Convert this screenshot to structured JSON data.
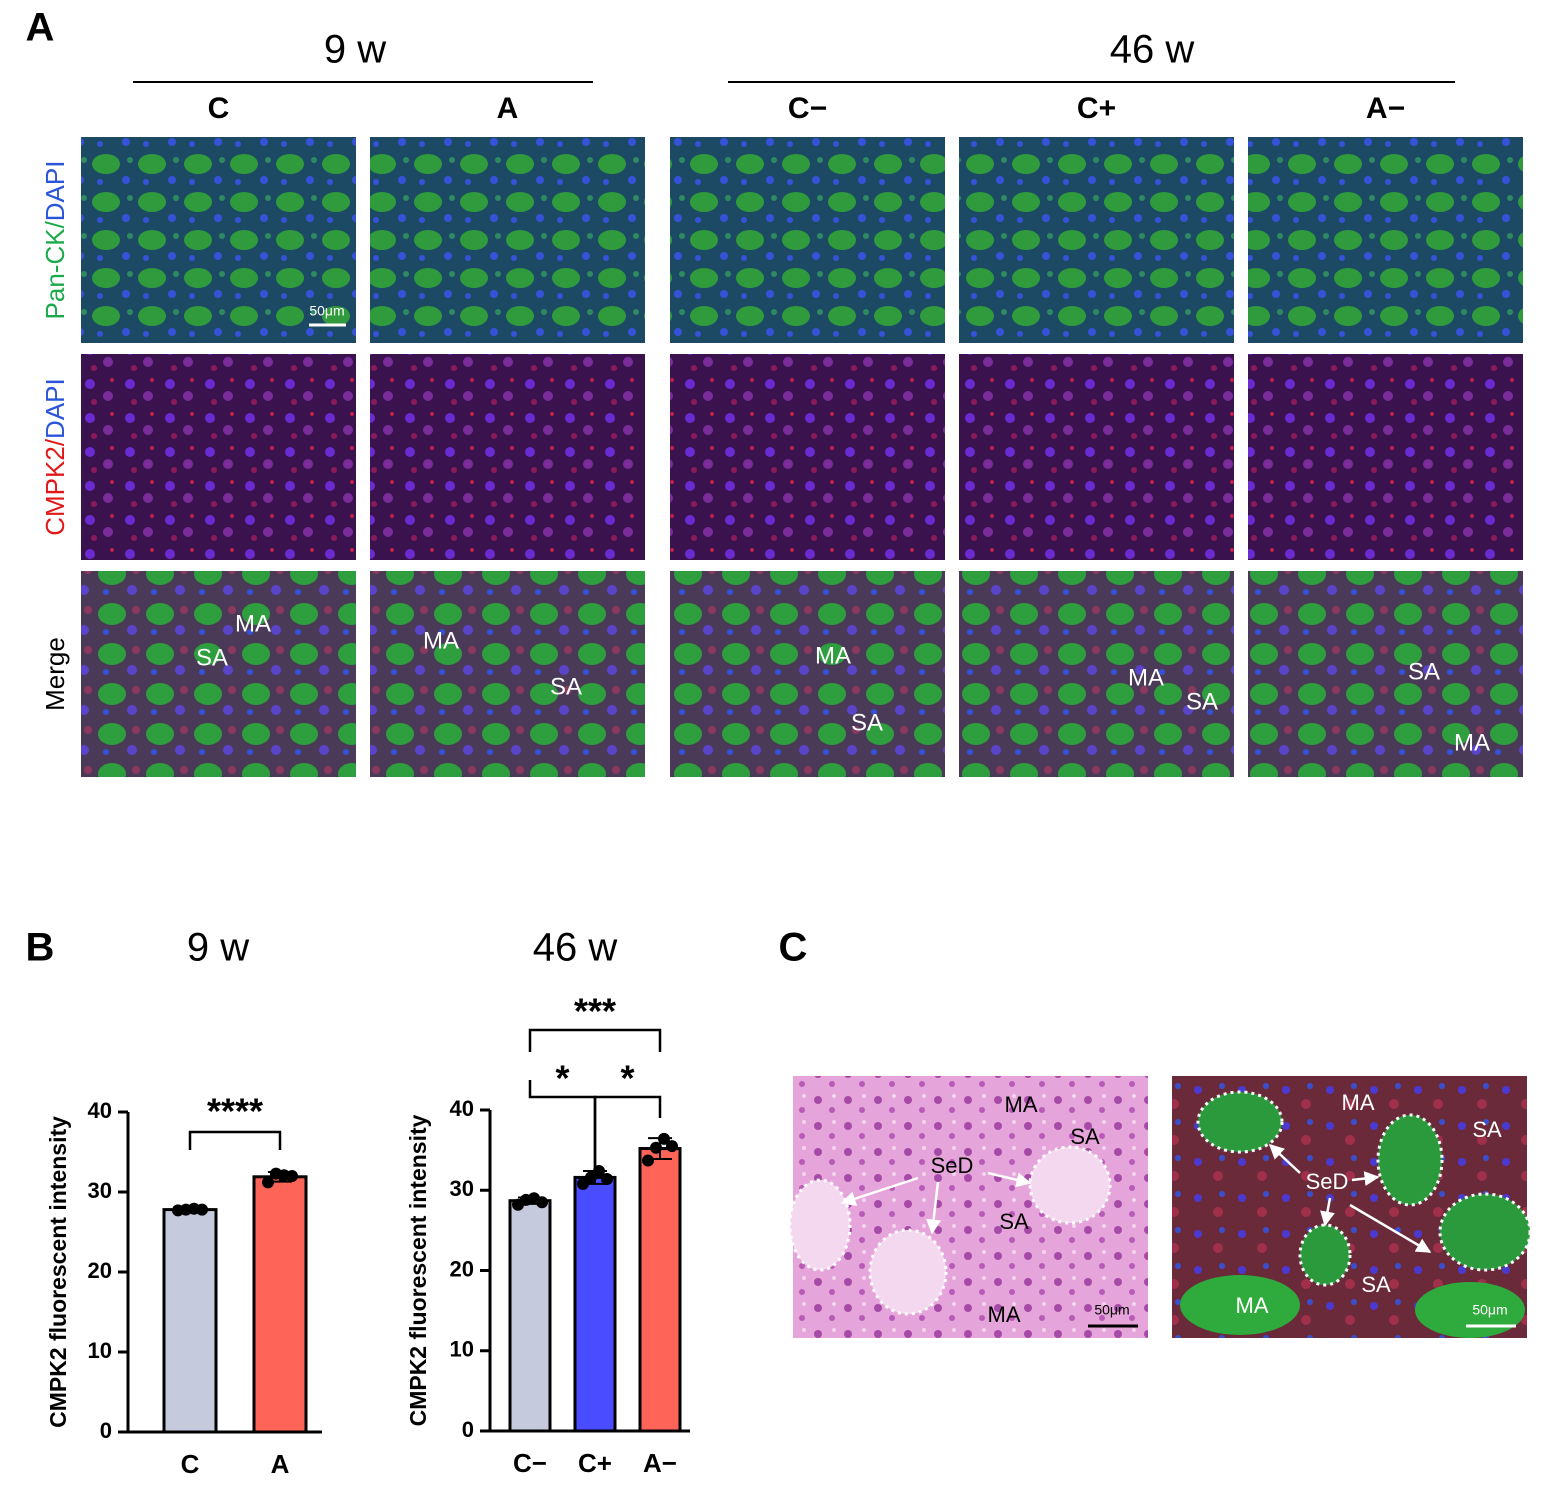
{
  "panel_a": {
    "label": "A",
    "groups": [
      "9 w",
      "46 w"
    ],
    "columns": [
      "C",
      "A",
      "C−",
      "C+",
      "A−"
    ],
    "rows": [
      {
        "parts": [
          "Pan-CK/",
          "DAPI"
        ]
      },
      {
        "parts": [
          "CMPK2/",
          "DAPI"
        ]
      },
      {
        "parts": [
          "Merge"
        ]
      }
    ],
    "scale_bar": "50μm",
    "merge_labels": [
      [
        "MA",
        "SA"
      ],
      [
        "MA",
        "SA"
      ],
      [
        "MA",
        "SA"
      ],
      [
        "MA",
        "SA"
      ],
      [
        "SA",
        "MA"
      ]
    ]
  },
  "panel_b": {
    "label": "B"
  },
  "chart_data": [
    {
      "type": "bar",
      "title": "9 w",
      "y_label": "CMPK2 fluorescent intensity",
      "categories": [
        "C",
        "A"
      ],
      "values": [
        27.8,
        31.9
      ],
      "errors": [
        0.15,
        0.6
      ],
      "points": [
        [
          27.7,
          27.8,
          27.9,
          27.8
        ],
        [
          31.2,
          32.3,
          32.1,
          32.0
        ]
      ],
      "colors": [
        "#c5cbdc",
        "#ff6459"
      ],
      "ylim": [
        0,
        40
      ],
      "yticks": [
        0,
        10,
        20,
        30,
        40
      ],
      "annotations": [
        "****"
      ]
    },
    {
      "type": "bar",
      "title": "46 w",
      "y_label": "CMPK2 fluorescent intensity",
      "categories": [
        "C−",
        "C+",
        "A−"
      ],
      "values": [
        28.7,
        31.6,
        35.2
      ],
      "errors": [
        0.4,
        0.8,
        1.3
      ],
      "points": [
        [
          28.2,
          28.8,
          29.0,
          28.5
        ],
        [
          30.8,
          31.6,
          32.4,
          31.4
        ],
        [
          33.7,
          35.3,
          36.4,
          35.5
        ]
      ],
      "colors": [
        "#c5cbdc",
        "#4a4cff",
        "#ff6459"
      ],
      "ylim": [
        0,
        40
      ],
      "yticks": [
        0,
        10,
        20,
        30,
        40
      ],
      "annotations": [
        "***",
        "*",
        "*"
      ]
    }
  ],
  "panel_c": {
    "label": "C",
    "he_labels": [
      "MA",
      "SA",
      "SeD",
      "SA",
      "MA"
    ],
    "he_scale_bar": "50μm",
    "if_labels": [
      "MA",
      "SA",
      "SeD",
      "SA",
      "MA"
    ],
    "if_scale_bar": "50μm"
  }
}
